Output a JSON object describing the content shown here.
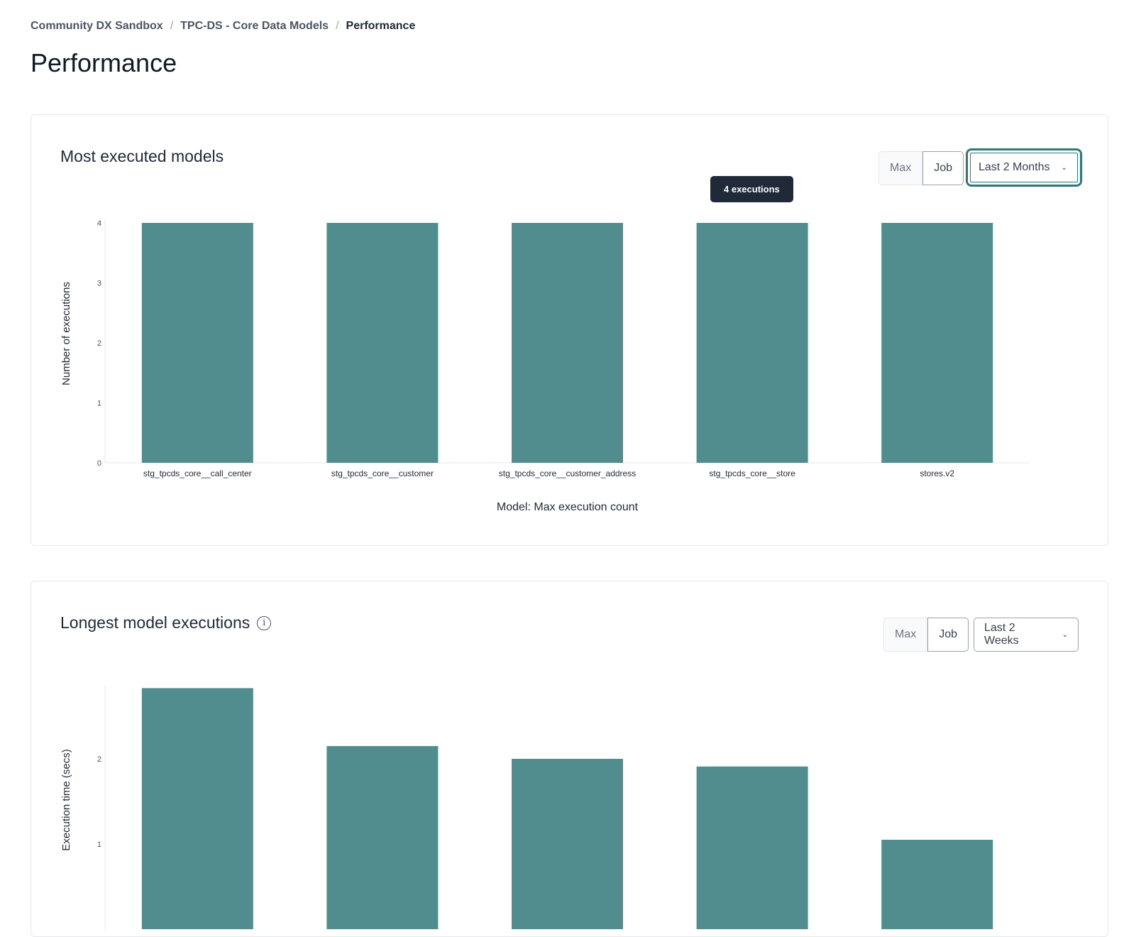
{
  "breadcrumb": [
    "Community DX Sandbox",
    "TPC-DS - Core Data Models",
    "Performance"
  ],
  "page_title": "Performance",
  "colors": {
    "bar": "#518d8e",
    "accent": "#2f7876"
  },
  "cards": [
    {
      "title": "Most executed models",
      "toggle": [
        "Max",
        "Job"
      ],
      "range": "Last 2 Months",
      "tooltip": "4 executions"
    },
    {
      "title": "Longest model executions",
      "toggle": [
        "Max",
        "Job"
      ],
      "range": "Last 2 Weeks",
      "info_icon": "info-icon"
    }
  ],
  "chart_data": [
    {
      "type": "bar",
      "title": "",
      "xlabel": "Model: Max execution count",
      "ylabel": "Number of executions",
      "categories": [
        "stg_tpcds_core__call_center",
        "stg_tpcds_core__customer",
        "stg_tpcds_core__customer_address",
        "stg_tpcds_core__store",
        "stores.v2"
      ],
      "values": [
        4,
        4,
        4,
        4,
        4
      ],
      "ylim": [
        0,
        4
      ],
      "yticks": [
        "0",
        "1",
        "2",
        "3",
        "4"
      ],
      "grid": false
    },
    {
      "type": "bar",
      "title": "",
      "ylabel": "Execution time (secs)",
      "values": [
        2.83,
        2.15,
        2.0,
        1.91,
        1.05
      ],
      "yticks": [
        "1",
        "2"
      ],
      "grid": false
    }
  ]
}
